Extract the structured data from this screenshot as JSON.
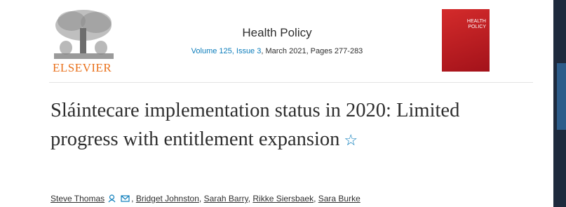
{
  "header": {
    "publisher": "ELSEVIER",
    "journal": "Health Policy",
    "volume_issue": "Volume 125, Issue 3",
    "date_pages": "March 2021, Pages 277-283",
    "cover_title": "HEALTH POLICY"
  },
  "article": {
    "title": "Sláintecare implementation status in 2020: Limited progress with entitlement expansion",
    "authors": [
      "Steve Thomas",
      "Bridget Johnston",
      "Sarah Barry",
      "Rikke Siersbaek",
      "Sara Burke"
    ]
  }
}
